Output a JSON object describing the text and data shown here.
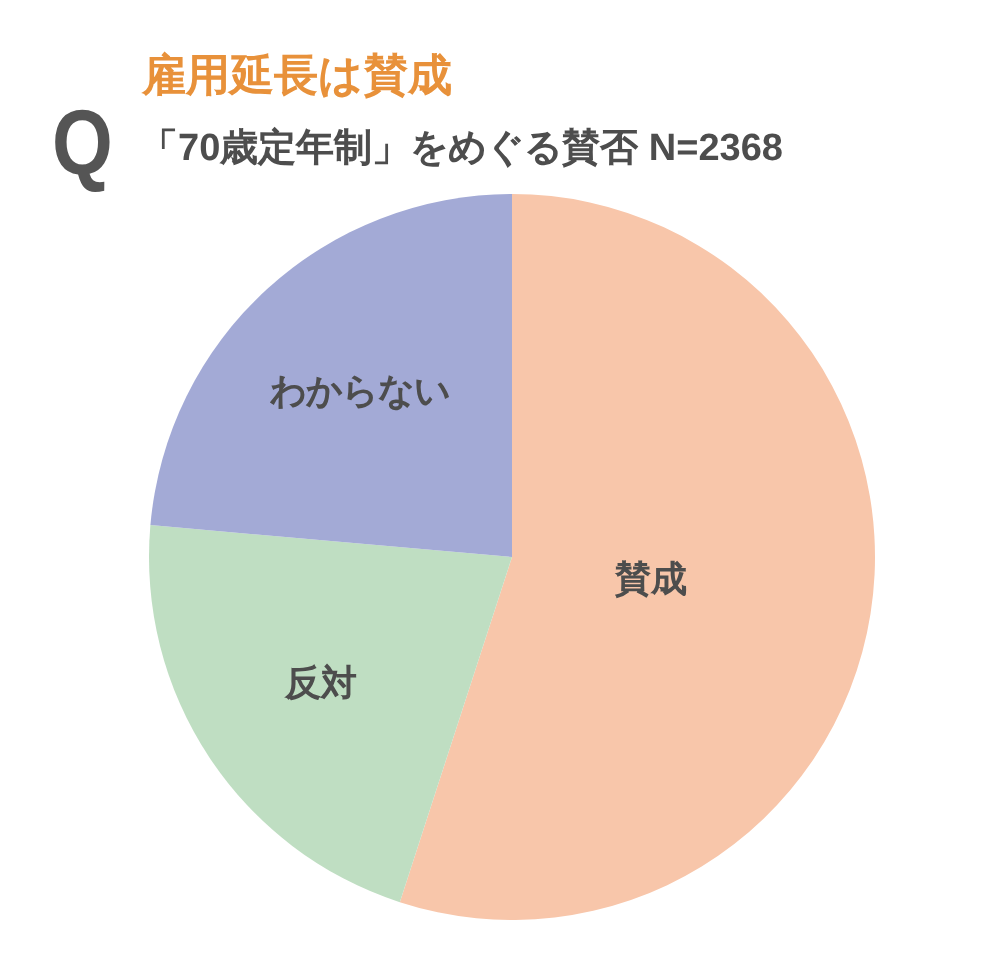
{
  "chart_data": {
    "type": "pie",
    "title": "雇用延長は賛成",
    "subtitle": "「70歳定年制」をめぐる賛否 N=2368",
    "annotations": [
      "Q"
    ],
    "categories": [
      "賛成",
      "反対",
      "わからない"
    ],
    "values": [
      55.0,
      21.4,
      23.6
    ],
    "colors": [
      "#f8c6aa",
      "#bfdec2",
      "#a3aad6"
    ]
  }
}
